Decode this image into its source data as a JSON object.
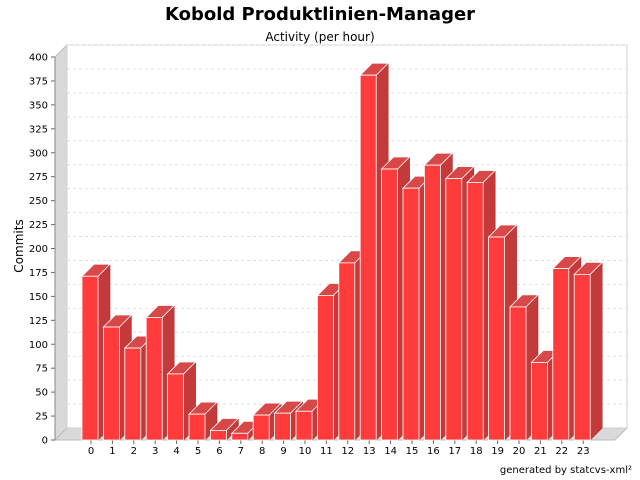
{
  "title": "Kobold Produktlinien-Manager",
  "subtitle": "Activity (per hour)",
  "footer": "generated by statcvs-xml²",
  "colors": {
    "bar_front": "#ff3b3b",
    "bar_side": "#c43a3a",
    "bar_top": "#d84848",
    "wall": "#d9d9d9",
    "grid": "#e0e0e0"
  },
  "chart_data": {
    "type": "bar",
    "title": "Kobold Produktlinien-Manager",
    "subtitle": "Activity (per hour)",
    "xlabel": "",
    "ylabel": "Commits",
    "categories": [
      "0",
      "1",
      "2",
      "3",
      "4",
      "5",
      "6",
      "7",
      "8",
      "9",
      "10",
      "11",
      "12",
      "13",
      "14",
      "15",
      "16",
      "17",
      "18",
      "19",
      "20",
      "21",
      "22",
      "23"
    ],
    "values": [
      171,
      118,
      96,
      128,
      69,
      27,
      10,
      7,
      26,
      28,
      30,
      151,
      185,
      381,
      283,
      263,
      287,
      273,
      269,
      212,
      139,
      81,
      179,
      173
    ],
    "ylim": [
      0,
      400
    ],
    "yticks": [
      0,
      25,
      50,
      75,
      100,
      125,
      150,
      175,
      200,
      225,
      250,
      275,
      300,
      325,
      350,
      375,
      400
    ],
    "grid": true,
    "render": "3d"
  }
}
